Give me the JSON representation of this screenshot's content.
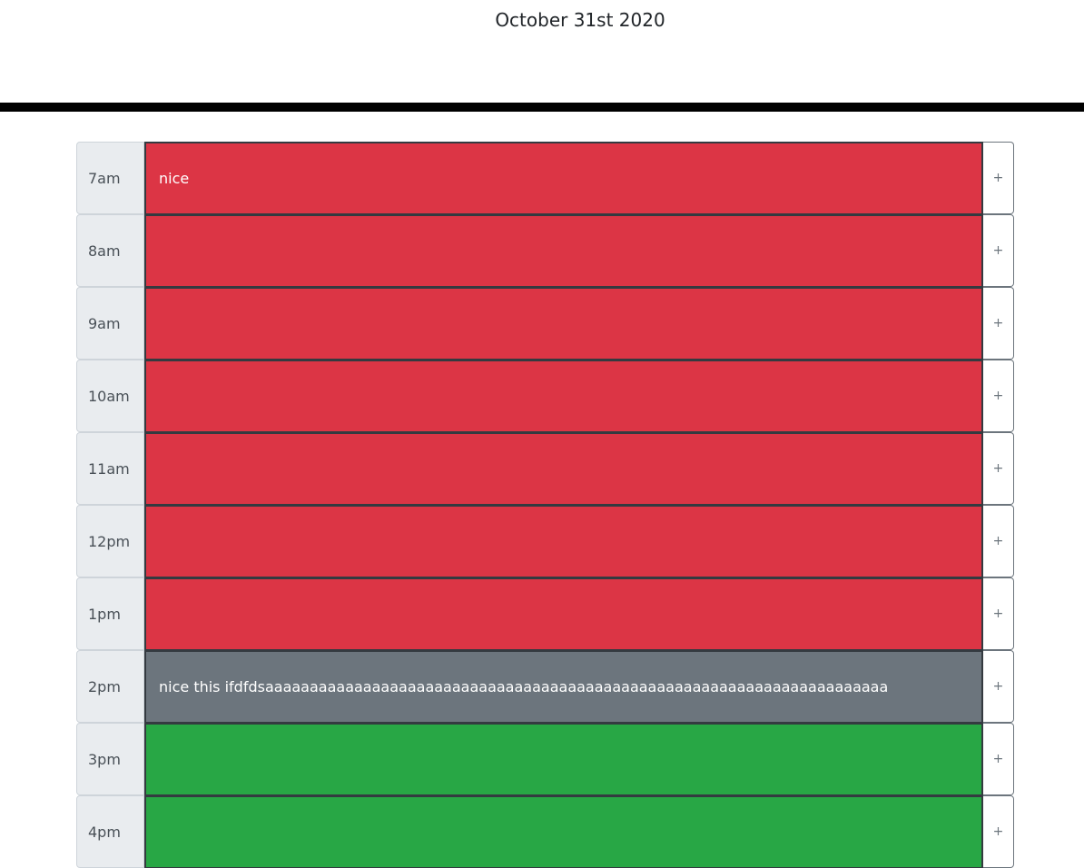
{
  "header": {
    "current_day": "October 31st 2020"
  },
  "colors": {
    "past": "#dc3545",
    "present": "#6c757d",
    "future": "#28a745"
  },
  "save_icon": "plus-icon",
  "time_blocks": [
    {
      "hour": "7am",
      "text": "nice",
      "state": "past",
      "save_label": "+"
    },
    {
      "hour": "8am",
      "text": "",
      "state": "past",
      "save_label": "+"
    },
    {
      "hour": "9am",
      "text": "",
      "state": "past",
      "save_label": "+"
    },
    {
      "hour": "10am",
      "text": "",
      "state": "past",
      "save_label": "+"
    },
    {
      "hour": "11am",
      "text": "",
      "state": "past",
      "save_label": "+"
    },
    {
      "hour": "12pm",
      "text": "",
      "state": "past",
      "save_label": "+"
    },
    {
      "hour": "1pm",
      "text": "",
      "state": "past",
      "save_label": "+"
    },
    {
      "hour": "2pm",
      "text": "nice this ifdfdsaaaaaaaaaaaaaaaaaaaaaaaaaaaaaaaaaaaaaaaaaaaaaaaaaaaaaaaaaaaaaaaaaaaaaa",
      "state": "present",
      "save_label": "+"
    },
    {
      "hour": "3pm",
      "text": "",
      "state": "future",
      "save_label": "+"
    },
    {
      "hour": "4pm",
      "text": "",
      "state": "future",
      "save_label": "+"
    }
  ]
}
